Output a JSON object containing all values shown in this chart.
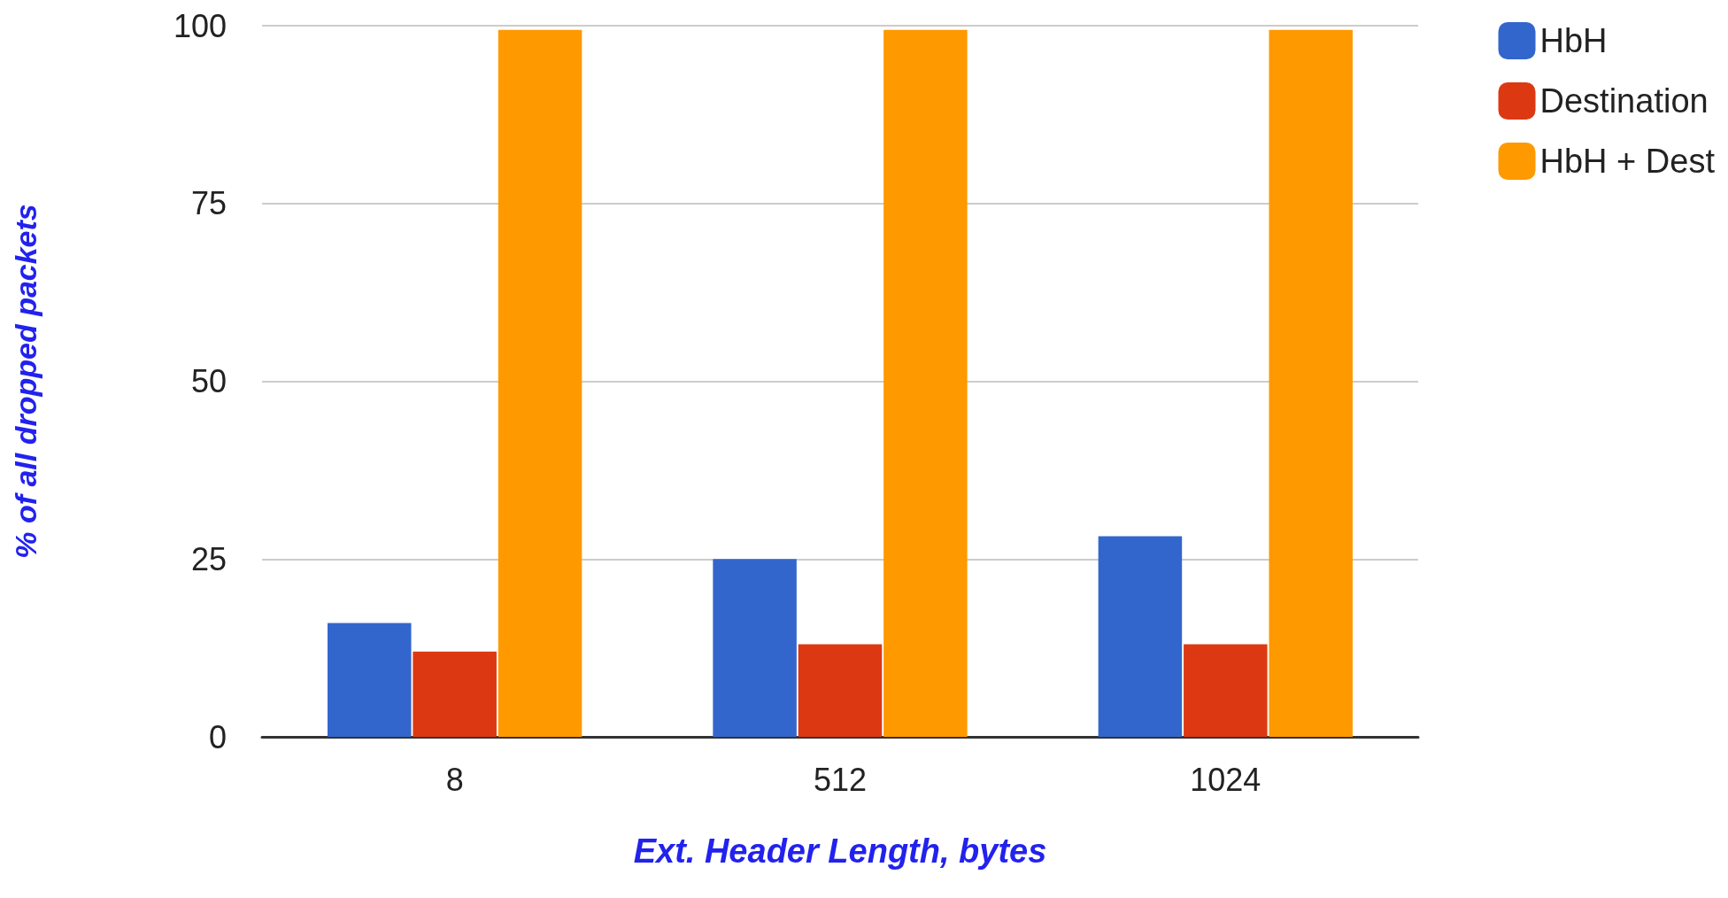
{
  "chart_data": {
    "type": "bar",
    "xlabel": "Ext. Header Length, bytes",
    "ylabel": "% of all dropped packets",
    "categories": [
      "8",
      "512",
      "1024"
    ],
    "series": [
      {
        "name": "HbH",
        "color": "#3366cc",
        "values": [
          16,
          25,
          28.2
        ]
      },
      {
        "name": "Destination",
        "color": "#dc3912",
        "values": [
          12,
          13,
          13
        ]
      },
      {
        "name": "HbH + Dest",
        "color": "#ff9900",
        "values": [
          99.4,
          99.4,
          99.4
        ]
      }
    ],
    "ylim": [
      0,
      100
    ],
    "yticks": [
      0,
      25,
      50,
      75,
      100
    ],
    "grid": "y",
    "legend": "top right"
  }
}
